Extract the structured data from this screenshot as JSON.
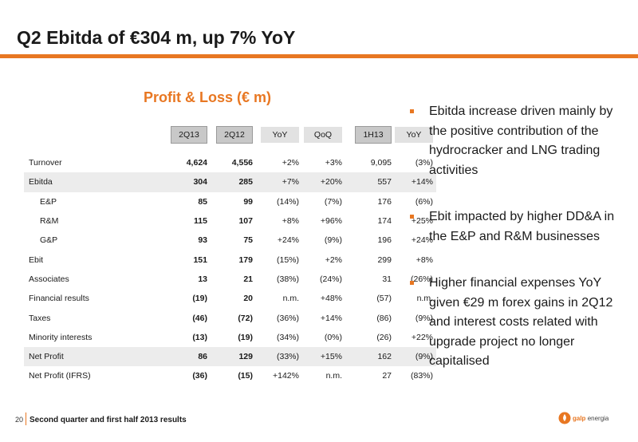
{
  "page": {
    "title": "Q2 Ebitda of €304 m, up 7% YoY",
    "section_title": "Profit & Loss (€ m)",
    "accent_color": "#e87722"
  },
  "table": {
    "headers": [
      "2Q13",
      "2Q12",
      "YoY",
      "QoQ",
      "1H13",
      "YoY"
    ],
    "rows": [
      {
        "label": "Turnover",
        "c1": "4,624",
        "c2": "4,556",
        "c3": "+2%",
        "c4": "+3%",
        "c5": "9,095",
        "c6": "(3%)"
      },
      {
        "label": "Ebitda",
        "c1": "304",
        "c2": "285",
        "c3": "+7%",
        "c4": "+20%",
        "c5": "557",
        "c6": "+14%"
      },
      {
        "label": "E&P",
        "c1": "85",
        "c2": "99",
        "c3": "(14%)",
        "c4": "(7%)",
        "c5": "176",
        "c6": "(6%)"
      },
      {
        "label": "R&M",
        "c1": "115",
        "c2": "107",
        "c3": "+8%",
        "c4": "+96%",
        "c5": "174",
        "c6": "+25%"
      },
      {
        "label": "G&P",
        "c1": "93",
        "c2": "75",
        "c3": "+24%",
        "c4": "(9%)",
        "c5": "196",
        "c6": "+24%"
      },
      {
        "label": "Ebit",
        "c1": "151",
        "c2": "179",
        "c3": "(15%)",
        "c4": "+2%",
        "c5": "299",
        "c6": "+8%"
      },
      {
        "label": "Associates",
        "c1": "13",
        "c2": "21",
        "c3": "(38%)",
        "c4": "(24%)",
        "c5": "31",
        "c6": "(26%)"
      },
      {
        "label": "Financial results",
        "c1": "(19)",
        "c2": "20",
        "c3": "n.m.",
        "c4": "+48%",
        "c5": "(57)",
        "c6": "n.m."
      },
      {
        "label": "Taxes",
        "c1": "(46)",
        "c2": "(72)",
        "c3": "(36%)",
        "c4": "+14%",
        "c5": "(86)",
        "c6": "(9%)"
      },
      {
        "label": "Minority interests",
        "c1": "(13)",
        "c2": "(19)",
        "c3": "(34%)",
        "c4": "(0%)",
        "c5": "(26)",
        "c6": "+22%"
      },
      {
        "label": "Net Profit",
        "c1": "86",
        "c2": "129",
        "c3": "(33%)",
        "c4": "+15%",
        "c5": "162",
        "c6": "(9%)"
      },
      {
        "label": "Net Profit (IFRS)",
        "c1": "(36)",
        "c2": "(15)",
        "c3": "+142%",
        "c4": "n.m.",
        "c5": "27",
        "c6": "(83%)"
      }
    ]
  },
  "bullets": [
    "Ebitda increase driven mainly by the positive contribution of the hydrocracker and LNG trading activities",
    "Ebit impacted by higher DD&A in the E&P and R&M businesses",
    "Higher financial expenses YoY given €29 m forex gains in 2Q12 and interest costs related with upgrade project no longer capitalised"
  ],
  "footer": {
    "page_number": "20",
    "text": "Second quarter and first half 2013 results",
    "logo_brand": "galp",
    "logo_suffix": "energia"
  }
}
